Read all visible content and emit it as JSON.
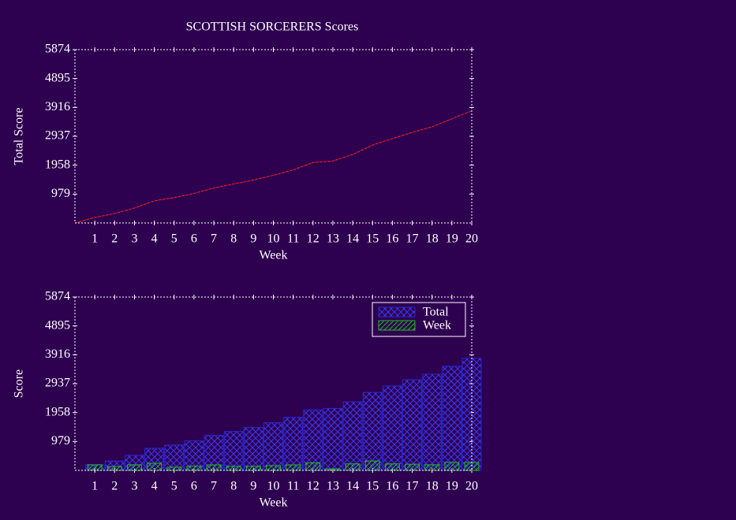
{
  "chart_data": [
    {
      "type": "line",
      "title": "SCOTTISH SORCERERS Scores",
      "xlabel": "Week",
      "ylabel": "Total Score",
      "x": [
        0,
        1,
        2,
        3,
        4,
        5,
        6,
        7,
        8,
        9,
        10,
        11,
        12,
        13,
        14,
        15,
        16,
        17,
        18,
        19,
        20
      ],
      "series": [
        {
          "name": "Total",
          "color": "#ff2020",
          "values": [
            0,
            190,
            320,
            510,
            750,
            860,
            1000,
            1185,
            1320,
            1455,
            1615,
            1800,
            2050,
            2100,
            2320,
            2640,
            2860,
            3070,
            3260,
            3530,
            3800
          ]
        }
      ],
      "xlim": [
        0,
        20
      ],
      "xticks": [
        1,
        2,
        3,
        4,
        5,
        6,
        7,
        8,
        9,
        10,
        11,
        12,
        13,
        14,
        15,
        16,
        17,
        18,
        19,
        20
      ],
      "ylim": [
        0,
        5874
      ],
      "yticks": [
        979,
        1958,
        2937,
        3916,
        4895,
        5874
      ]
    },
    {
      "type": "bar",
      "xlabel": "Week",
      "ylabel": "Score",
      "x": [
        1,
        2,
        3,
        4,
        5,
        6,
        7,
        8,
        9,
        10,
        11,
        12,
        13,
        14,
        15,
        16,
        17,
        18,
        19,
        20
      ],
      "series": [
        {
          "name": "Total",
          "color": "#2828d0",
          "values": [
            190,
            320,
            510,
            750,
            860,
            1000,
            1185,
            1320,
            1455,
            1615,
            1800,
            2050,
            2100,
            2320,
            2640,
            2860,
            3070,
            3260,
            3530,
            3800
          ]
        },
        {
          "name": "Week",
          "color": "#20c020",
          "values": [
            190,
            130,
            190,
            240,
            110,
            140,
            185,
            135,
            135,
            160,
            185,
            250,
            50,
            220,
            320,
            220,
            210,
            190,
            270,
            270
          ]
        }
      ],
      "xlim": [
        0,
        20
      ],
      "xticks": [
        1,
        2,
        3,
        4,
        5,
        6,
        7,
        8,
        9,
        10,
        11,
        12,
        13,
        14,
        15,
        16,
        17,
        18,
        19,
        20
      ],
      "ylim": [
        0,
        5874
      ],
      "yticks": [
        979,
        1958,
        2937,
        3916,
        4895,
        5874
      ],
      "legend": "upper right"
    }
  ]
}
